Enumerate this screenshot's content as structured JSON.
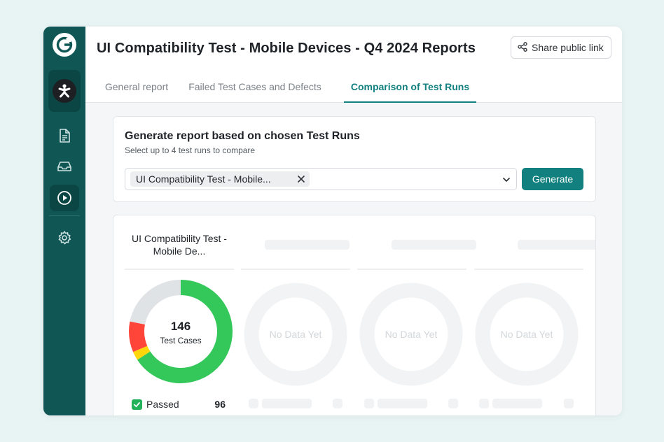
{
  "header": {
    "title": "UI Compatibility Test - Mobile Devices - Q4 2024 Reports",
    "share_label": "Share public link"
  },
  "tabs": [
    {
      "label": "General report",
      "active": false
    },
    {
      "label": "Failed Test Cases and Defects",
      "active": false
    },
    {
      "label": "Comparison of Test Runs",
      "active": true
    }
  ],
  "sidebar": {
    "icons": [
      "app-logo-icon",
      "project-avatar-icon",
      "document-icon",
      "inbox-icon",
      "play-icon",
      "settings-icon"
    ],
    "active": "play-icon"
  },
  "generate_card": {
    "title": "Generate report based on chosen Test Runs",
    "subtitle": "Select up to 4 test runs to compare",
    "selected_chip": "UI Compatibility Test - Mobile...",
    "button_label": "Generate"
  },
  "comparison": {
    "run_title": "UI Compatibility Test - Mobile De...",
    "total": "146",
    "total_label": "Test Cases",
    "empty_label": "No Data Yet",
    "legend": [
      {
        "label": "Passed",
        "value": "96"
      }
    ]
  },
  "chart_data": {
    "type": "pie",
    "title": "",
    "slices": [
      {
        "label": "Passed",
        "value": 96,
        "color": "#34c759"
      },
      {
        "label": "yellow-segment",
        "value": 4,
        "color": "#ffd60a"
      },
      {
        "label": "red-segment",
        "value": 14,
        "color": "#ff453a"
      },
      {
        "label": "grey-segment",
        "value": 32,
        "color": "#e0e3e6"
      }
    ],
    "total": 146
  },
  "colors": {
    "sidebar": "#0f5654",
    "accent": "#11807f",
    "passed": "#34c759",
    "failed": "#ff453a",
    "blocked": "#ffd60a",
    "untested": "#e0e3e6"
  }
}
